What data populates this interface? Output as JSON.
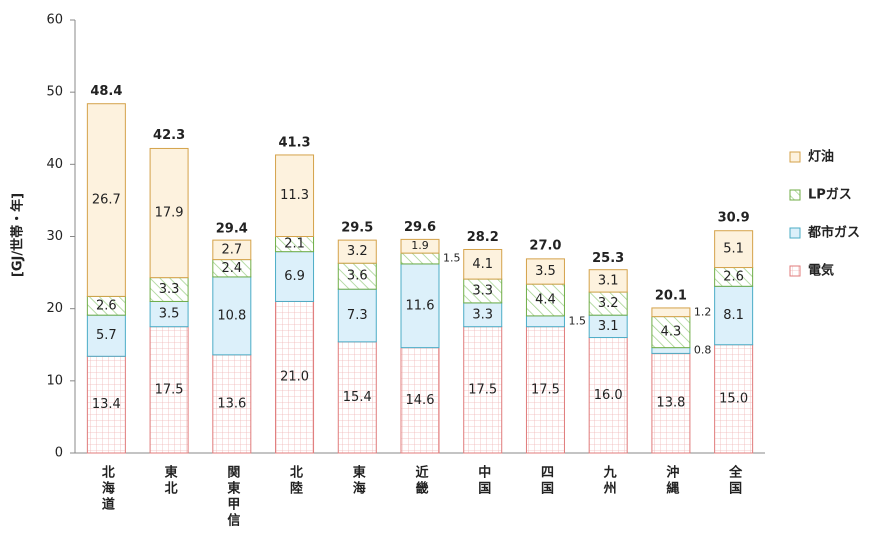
{
  "chart_data": {
    "type": "stacked_bar",
    "y_label": "[GJ/世帯・年]",
    "categories": [
      "北海道",
      "東北",
      "関東甲信",
      "北陸",
      "東海",
      "近畿",
      "中国",
      "四国",
      "九州",
      "沖縄",
      "全国"
    ],
    "series": [
      {
        "name": "電気",
        "color": "#e07b7b",
        "values": [
          13.4,
          17.5,
          13.6,
          21.0,
          15.4,
          14.6,
          17.5,
          17.5,
          16.0,
          13.8,
          15.0
        ],
        "value_labels": [
          "13.4",
          "17.5",
          "13.6",
          "21.0",
          "15.4",
          "14.6",
          "17.5",
          "17.5",
          "16.0",
          "13.8",
          "15.0"
        ]
      },
      {
        "name": "都市ガス",
        "color": "#4bacc6",
        "values": [
          5.7,
          3.5,
          10.8,
          6.9,
          7.3,
          11.6,
          3.3,
          1.5,
          3.1,
          0.8,
          8.1
        ],
        "value_labels": [
          "5.7",
          "3.5",
          "10.8",
          "6.9",
          "7.3",
          "11.6",
          "3.3",
          "1.5",
          "3.1",
          "0.8",
          "8.1"
        ]
      },
      {
        "name": "LPガス",
        "color": "#70ad47",
        "values": [
          2.6,
          3.3,
          2.4,
          2.1,
          3.6,
          1.5,
          3.3,
          4.4,
          3.2,
          4.3,
          2.6
        ],
        "value_labels": [
          "2.6",
          "3.3",
          "2.4",
          "2.1",
          "3.6",
          "1.5",
          "3.3",
          "4.4",
          "3.2",
          "4.3",
          "2.6"
        ]
      },
      {
        "name": "灯油",
        "color": "#d4a24a",
        "values": [
          26.7,
          17.9,
          2.7,
          11.3,
          3.2,
          1.9,
          4.1,
          3.5,
          3.1,
          1.2,
          5.1
        ],
        "value_labels": [
          "26.7",
          "17.9",
          "2.7",
          "11.3",
          "3.2",
          "1.9",
          "4.1",
          "3.5",
          "3.1",
          "1.2",
          "5.1"
        ]
      }
    ],
    "totals": [
      48.4,
      42.3,
      29.4,
      41.3,
      29.5,
      29.6,
      28.2,
      27.0,
      25.3,
      20.1,
      30.9
    ],
    "total_labels": [
      "48.4",
      "42.3",
      "29.4",
      "41.3",
      "29.5",
      "29.6",
      "28.2",
      "27.0",
      "25.3",
      "20.1",
      "30.9"
    ],
    "ylim": [
      0,
      60
    ],
    "yticks": [
      0,
      10,
      20,
      30,
      40,
      50,
      60
    ],
    "grid": false,
    "legend": "right"
  }
}
